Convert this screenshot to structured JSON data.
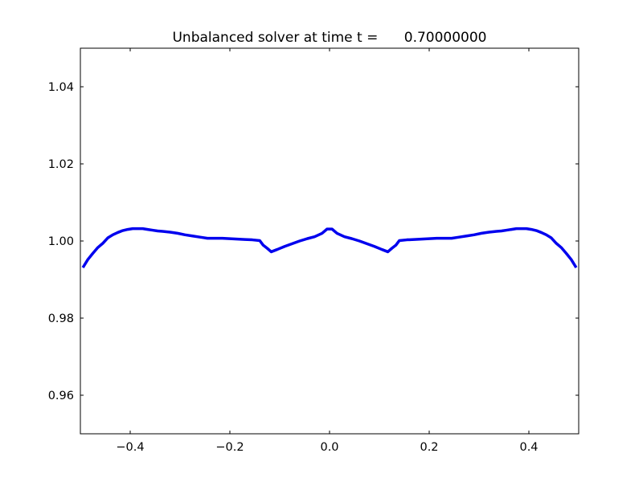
{
  "chart_data": {
    "type": "line",
    "title": "Unbalanced solver at time t =      0.70000000",
    "xlabel": "",
    "ylabel": "",
    "xlim": [
      -0.5,
      0.5
    ],
    "ylim": [
      0.95,
      1.05
    ],
    "xticks": [
      -0.4,
      -0.2,
      0.0,
      0.2,
      0.4
    ],
    "xtick_labels": [
      "−0.4",
      "−0.2",
      "0.0",
      "0.2",
      "0.4"
    ],
    "yticks": [
      0.96,
      0.98,
      1.0,
      1.02,
      1.04
    ],
    "ytick_labels": [
      "0.96",
      "0.98",
      "1.00",
      "1.02",
      "1.04"
    ],
    "grid": false,
    "line_color": "#0000ee",
    "series": [
      {
        "x": [
          -0.495,
          -0.485,
          -0.475,
          -0.465,
          -0.455,
          -0.445,
          -0.435,
          -0.425,
          -0.415,
          -0.405,
          -0.395,
          -0.385,
          -0.375,
          -0.365,
          -0.355,
          -0.345,
          -0.335,
          -0.32,
          -0.305,
          -0.29,
          -0.275,
          -0.26,
          -0.245,
          -0.23,
          -0.215,
          -0.2,
          -0.185,
          -0.17,
          -0.155,
          -0.14,
          -0.133,
          -0.125,
          -0.117,
          -0.105,
          -0.09,
          -0.075,
          -0.06,
          -0.045,
          -0.03,
          -0.015,
          -0.005,
          0.005,
          0.015,
          0.03,
          0.045,
          0.06,
          0.075,
          0.09,
          0.105,
          0.117,
          0.125,
          0.133,
          0.14,
          0.155,
          0.17,
          0.185,
          0.2,
          0.215,
          0.23,
          0.245,
          0.26,
          0.275,
          0.29,
          0.305,
          0.32,
          0.335,
          0.345,
          0.355,
          0.365,
          0.375,
          0.385,
          0.395,
          0.405,
          0.415,
          0.425,
          0.435,
          0.445,
          0.455,
          0.465,
          0.475,
          0.485,
          0.495
        ],
        "y": [
          0.9931,
          0.9952,
          0.9968,
          0.9983,
          0.9994,
          1.0008,
          1.0016,
          1.0022,
          1.0027,
          1.003,
          1.0032,
          1.0032,
          1.0032,
          1.003,
          1.0028,
          1.0026,
          1.0025,
          1.0023,
          1.002,
          1.0016,
          1.0013,
          1.001,
          1.0007,
          1.0007,
          1.0007,
          1.0006,
          1.0005,
          1.0004,
          1.0003,
          1.0001,
          0.9989,
          0.9981,
          0.9972,
          0.9978,
          0.9986,
          0.9993,
          1.0,
          1.0006,
          1.0011,
          1.002,
          1.0031,
          1.0031,
          1.002,
          1.0011,
          1.0006,
          1.0,
          0.9993,
          0.9986,
          0.9978,
          0.9972,
          0.9981,
          0.9989,
          1.0001,
          1.0003,
          1.0004,
          1.0005,
          1.0006,
          1.0007,
          1.0007,
          1.0007,
          1.001,
          1.0013,
          1.0016,
          1.002,
          1.0023,
          1.0025,
          1.0026,
          1.0028,
          1.003,
          1.0032,
          1.0032,
          1.0032,
          1.003,
          1.0027,
          1.0022,
          1.0016,
          1.0008,
          0.9994,
          0.9983,
          0.9968,
          0.9952,
          0.9931
        ]
      }
    ]
  }
}
